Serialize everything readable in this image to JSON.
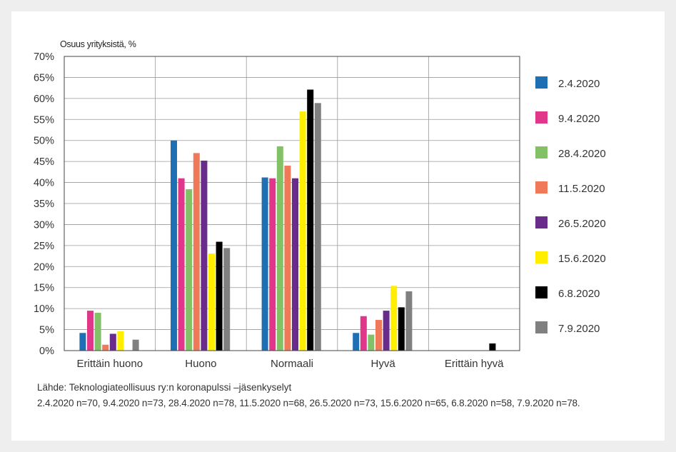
{
  "chart_data": {
    "type": "bar",
    "title": "",
    "ylabel": "Osuus yrityksistä, %",
    "xlabel": "",
    "ylim": [
      0,
      70
    ],
    "ytick_step": 5,
    "ytick_suffix": "%",
    "grid": "on",
    "legend_position": "right",
    "categories": [
      "Erittäin huono",
      "Huono",
      "Normaali",
      "Hyvä",
      "Erittäin hyvä"
    ],
    "series": [
      {
        "name": "2.4.2020",
        "color": "#1f6fb4",
        "values": [
          4.2,
          50,
          41.2,
          4.2,
          0
        ]
      },
      {
        "name": "9.4.2020",
        "color": "#e0378a",
        "values": [
          9.5,
          41,
          41,
          8.2,
          0
        ]
      },
      {
        "name": "28.4.2020",
        "color": "#82c166",
        "values": [
          9,
          38.4,
          48.6,
          3.8,
          0
        ]
      },
      {
        "name": "11.5.2020",
        "color": "#f0795a",
        "values": [
          1.4,
          47,
          44,
          7.3,
          0
        ]
      },
      {
        "name": "26.5.2020",
        "color": "#6a2c8a",
        "values": [
          4,
          45.2,
          41,
          9.5,
          0
        ]
      },
      {
        "name": "15.6.2020",
        "color": "#ffee00",
        "values": [
          4.6,
          23.1,
          56.9,
          15.4,
          0
        ]
      },
      {
        "name": "6.8.2020",
        "color": "#000000",
        "values": [
          0,
          25.9,
          62.1,
          10.3,
          1.7
        ]
      },
      {
        "name": "7.9.2020",
        "color": "#808080",
        "values": [
          2.6,
          24.4,
          58.9,
          14.1,
          0
        ]
      }
    ]
  },
  "source": {
    "line1": "Lähde: Teknologiateollisuus ry:n koronapulssi –jäsenkyselyt",
    "line2": "2.4.2020 n=70, 9.4.2020 n=73, 28.4.2020 n=78, 11.5.2020 n=68, 26.5.2020 n=73, 15.6.2020 n=65, 6.8.2020 n=58, 7.9.2020 n=78."
  }
}
